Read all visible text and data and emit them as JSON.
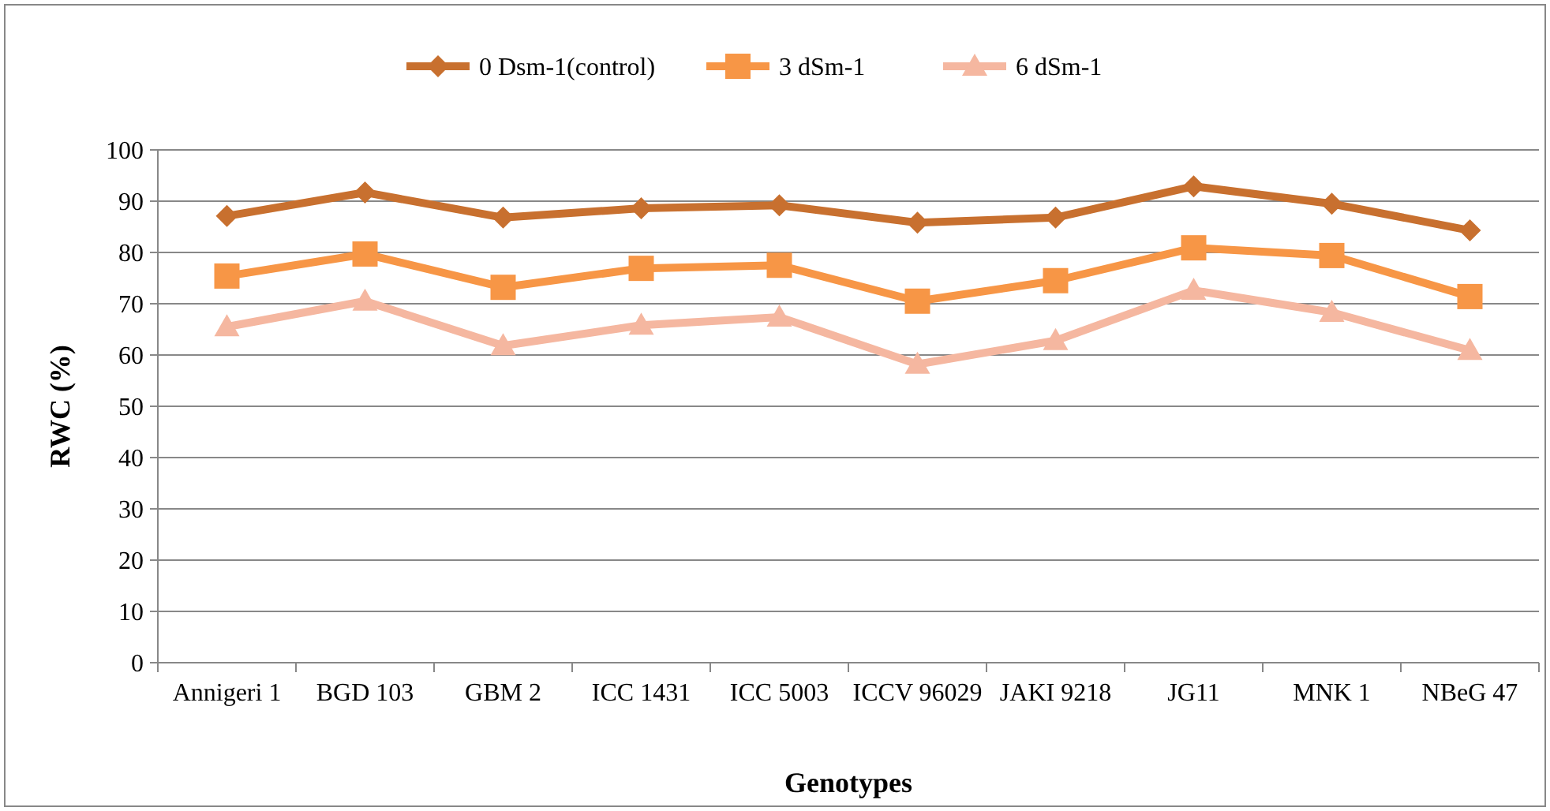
{
  "chart_data": {
    "type": "line",
    "xlabel": "Genotypes",
    "ylabel": "RWC (%)",
    "categories": [
      "Annigeri 1",
      "BGD 103",
      "GBM 2",
      "ICC 1431",
      "ICC 5003",
      "ICCV 96029",
      "JAKI 9218",
      "JG11",
      "MNK 1",
      "NBeG 47"
    ],
    "series": [
      {
        "name": "0 Dsm-1(control)",
        "color": "#c8702f",
        "marker": "diamond",
        "values": [
          87.1,
          91.7,
          86.8,
          88.6,
          89.2,
          85.8,
          86.8,
          92.9,
          89.5,
          84.3
        ]
      },
      {
        "name": "3 dSm-1",
        "color": "#f79646",
        "marker": "square",
        "values": [
          75.4,
          79.7,
          73.2,
          76.9,
          77.5,
          70.5,
          74.5,
          80.9,
          79.4,
          71.4
        ]
      },
      {
        "name": "6 dSm-1",
        "color": "#f5b7a0",
        "marker": "triangle",
        "values": [
          65.5,
          70.5,
          61.8,
          65.8,
          67.4,
          58.2,
          62.8,
          72.6,
          68.3,
          60.9
        ]
      }
    ],
    "ylim": [
      0,
      100
    ],
    "yticks": [
      0,
      10,
      20,
      30,
      40,
      50,
      60,
      70,
      80,
      90,
      100
    ],
    "grid": "y",
    "legend": "top",
    "line_style": "solid"
  }
}
